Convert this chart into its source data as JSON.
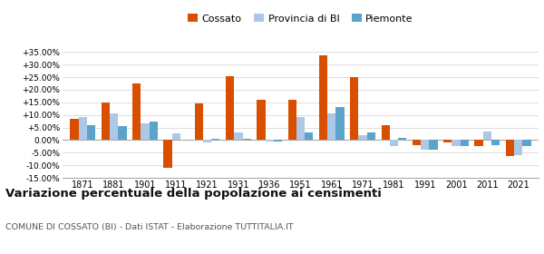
{
  "years": [
    1871,
    1881,
    1901,
    1911,
    1921,
    1931,
    1936,
    1951,
    1961,
    1971,
    1981,
    1991,
    2001,
    2011,
    2021
  ],
  "cossato": [
    8.5,
    15.0,
    22.5,
    -11.0,
    14.5,
    25.5,
    16.0,
    16.0,
    33.5,
    25.0,
    6.0,
    -2.0,
    -1.0,
    -2.5,
    -6.5
  ],
  "provincia_bi": [
    9.0,
    10.5,
    6.5,
    2.5,
    -1.0,
    3.0,
    -0.5,
    9.0,
    10.5,
    2.0,
    -2.5,
    -4.0,
    -2.5,
    3.5,
    -6.0
  ],
  "piemonte": [
    6.0,
    5.5,
    7.5,
    0.0,
    0.5,
    0.5,
    -0.5,
    3.0,
    13.0,
    3.0,
    1.0,
    -4.0,
    -2.5,
    -2.0,
    -2.5
  ],
  "color_cossato": "#d94f00",
  "color_provincia": "#adc8e6",
  "color_piemonte": "#5ba3c9",
  "title": "Variazione percentuale della popolazione ai censimenti",
  "subtitle": "COMUNE DI COSSATO (BI) - Dati ISTAT - Elaborazione TUTTITALIA.IT",
  "ylim": [
    -15.0,
    37.5
  ],
  "yticks": [
    -15.0,
    -10.0,
    -5.0,
    0.0,
    5.0,
    10.0,
    15.0,
    20.0,
    25.0,
    30.0,
    35.0
  ],
  "legend_labels": [
    "Cossato",
    "Provincia di BI",
    "Piemonte"
  ],
  "bar_width": 0.27
}
